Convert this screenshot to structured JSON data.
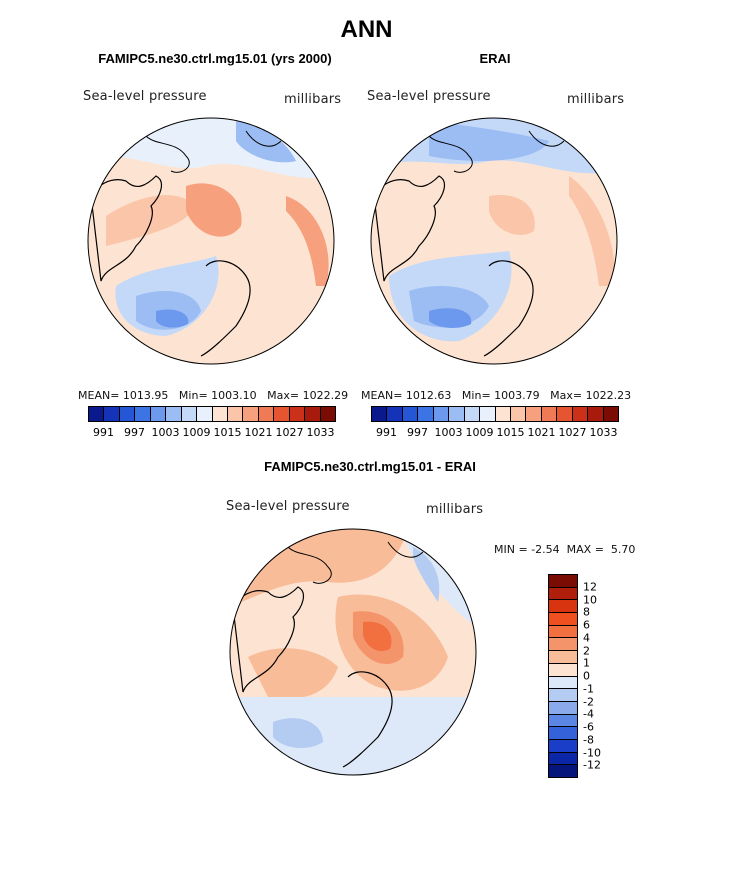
{
  "title": "ANN",
  "panels": {
    "model": {
      "title": "FAMIPC5.ne30.ctrl.mg15.01 (yrs 2000)",
      "variable": "Sea-level pressure",
      "units": "millibars",
      "stats": {
        "mean_label": "MEAN=",
        "mean": "1013.95",
        "min_label": "Min=",
        "min": "1003.10",
        "max_label": "Max=",
        "max": "1022.29"
      }
    },
    "obs": {
      "title": "ERAI",
      "variable": "Sea-level pressure",
      "units": "millibars",
      "stats": {
        "mean_label": "MEAN=",
        "mean": "1012.63",
        "min_label": "Min=",
        "min": "1003.79",
        "max_label": "Max=",
        "max": "1022.23"
      }
    },
    "diff": {
      "title": "FAMIPC5.ne30.ctrl.mg15.01 - ERAI",
      "variable": "Sea-level pressure",
      "units": "millibars",
      "stats": {
        "min_label": "MIN =",
        "min": "-2.54",
        "max_label": "MAX =",
        "max": "5.70"
      }
    }
  },
  "colorbar_abs": {
    "colors": [
      "#0a1a8c",
      "#1433b8",
      "#2456d6",
      "#3c74e6",
      "#6c98ee",
      "#9cbcf4",
      "#c4d8f8",
      "#e8f0fb",
      "#fde4d2",
      "#fac5a8",
      "#f6a07e",
      "#f07a56",
      "#e65432",
      "#cc3018",
      "#a81a0c",
      "#7a0c04"
    ],
    "ticks": [
      "991",
      "997",
      "1003",
      "1009",
      "1015",
      "1021",
      "1027",
      "1033"
    ]
  },
  "colorbar_diff": {
    "colors": [
      "#7a0c04",
      "#b01e0c",
      "#d83410",
      "#f05020",
      "#f27040",
      "#f4946a",
      "#f8bc98",
      "#fde4d2",
      "#dde9f8",
      "#b4cbf2",
      "#8aaaeb",
      "#5c86e3",
      "#3462da",
      "#1a3ec8",
      "#0c26a8",
      "#06157c"
    ],
    "ticks": [
      "12",
      "10",
      "8",
      "6",
      "4",
      "2",
      "1",
      "0",
      "-1",
      "-2",
      "-4",
      "-6",
      "-8",
      "-10",
      "-12"
    ]
  },
  "map_colors": {
    "ocean_base": "#fde4d2",
    "light_red": "#fac5a8",
    "mid_red": "#f6a07e",
    "deep_red": "#f07a56",
    "light_blue": "#c4d8f8",
    "mid_blue": "#9cbcf4",
    "deep_blue": "#6c98ee"
  }
}
